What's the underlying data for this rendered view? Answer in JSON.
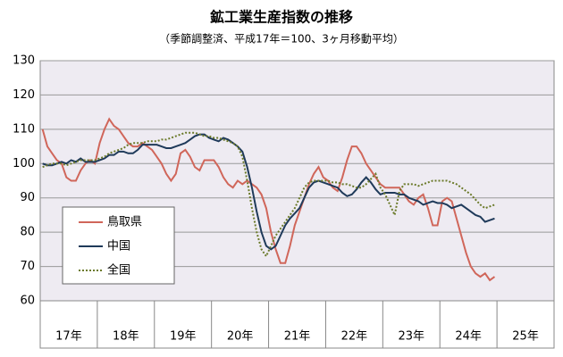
{
  "chart_data": {
    "type": "line",
    "title": "鉱工業生産指数の推移",
    "subtitle": "（季節調整済、平成17年＝100、3ヶ月移動平均）",
    "categories": [
      null,
      null,
      null,
      null,
      null,
      null,
      "17年",
      null,
      null,
      null,
      null,
      null,
      null,
      null,
      null,
      null,
      null,
      null,
      "18年",
      null,
      null,
      null,
      null,
      null,
      null,
      null,
      null,
      null,
      null,
      null,
      "19年",
      null,
      null,
      null,
      null,
      null,
      null,
      null,
      null,
      null,
      null,
      null,
      "20年",
      null,
      null,
      null,
      null,
      null,
      null,
      null,
      null,
      null,
      null,
      null,
      "21年",
      null,
      null,
      null,
      null,
      null,
      null,
      null,
      null,
      null,
      null,
      null,
      "22年",
      null,
      null,
      null,
      null,
      null,
      null,
      null,
      null,
      null,
      null,
      null,
      "23年",
      null,
      null,
      null,
      null,
      null,
      null,
      null,
      null,
      null,
      null,
      null,
      "24年",
      null,
      null,
      null,
      null,
      null,
      null,
      null,
      null,
      null,
      null,
      null,
      "25年",
      null,
      null,
      null,
      null,
      null
    ],
    "series": [
      {
        "name": "鳥取県",
        "color": "#d0665a",
        "dash": false,
        "values": [
          110,
          105,
          103,
          101,
          100,
          96,
          95,
          95,
          98,
          100,
          101,
          100,
          106,
          110,
          113,
          111,
          110,
          108,
          106,
          105,
          105,
          106,
          105,
          104,
          102,
          100,
          97,
          95,
          97,
          103,
          104,
          102,
          99,
          98,
          101,
          101,
          101,
          99,
          96,
          94,
          93,
          95,
          94,
          95,
          94,
          93,
          91,
          87,
          80,
          75,
          71,
          71,
          76,
          82,
          86,
          90,
          94,
          97,
          99,
          96,
          95,
          93,
          92,
          96,
          101,
          105,
          105,
          103,
          100,
          98,
          96,
          94,
          93,
          93,
          93,
          93,
          91,
          89,
          88,
          90,
          91,
          87,
          82,
          82,
          89,
          90,
          89,
          84,
          79,
          74,
          70,
          68,
          67,
          68,
          66,
          67,
          null,
          null,
          null,
          null,
          null,
          null,
          null,
          null,
          null,
          null,
          null,
          null
        ]
      },
      {
        "name": "中国",
        "color": "#1f3a5a",
        "dash": false,
        "values": [
          100,
          99.5,
          99.5,
          100,
          100.5,
          100,
          101,
          100.5,
          101.5,
          100.5,
          100.5,
          100.5,
          101,
          101.5,
          102.5,
          102.5,
          103.5,
          103.5,
          103,
          103,
          104,
          105.5,
          105.5,
          105.5,
          105.5,
          105,
          104.5,
          104.5,
          105,
          105.5,
          106,
          107,
          108,
          108.5,
          108.5,
          107.5,
          107,
          106.5,
          107.5,
          107,
          106,
          105,
          103.5,
          99,
          93,
          86,
          80,
          76,
          75,
          76,
          79,
          82,
          84,
          85.5,
          87,
          90,
          93,
          94.5,
          95,
          94.5,
          94,
          93.5,
          93,
          91.5,
          90.5,
          91,
          92.5,
          94.5,
          96,
          94.5,
          92.5,
          91,
          91.5,
          91.5,
          91.5,
          91,
          91,
          90,
          89.5,
          89,
          88,
          88.5,
          89,
          88.5,
          88.5,
          88,
          87,
          87.5,
          88,
          87,
          86,
          85,
          84.5,
          83,
          83.5,
          84,
          null,
          null,
          null,
          null,
          null,
          null,
          null,
          null,
          null,
          null,
          null,
          null
        ]
      },
      {
        "name": "全国",
        "color": "#6b7a2a",
        "dash": true,
        "values": [
          99,
          99.5,
          100,
          100,
          100,
          99.5,
          100,
          100.5,
          101,
          101,
          101,
          101,
          101.5,
          102,
          103,
          103.5,
          104,
          104.5,
          105.5,
          106,
          106,
          106,
          106.5,
          106.5,
          106.5,
          107,
          107,
          107.5,
          108,
          108.5,
          109,
          109,
          109,
          108.5,
          108,
          108,
          107.5,
          107.5,
          107,
          106.5,
          106,
          105,
          102,
          95,
          87,
          80,
          75,
          73,
          76,
          79,
          81,
          83,
          85,
          87,
          90,
          93,
          94.5,
          95,
          95,
          95,
          95,
          94.5,
          94.5,
          94,
          94,
          93.5,
          93,
          93,
          94,
          95.5,
          97,
          93,
          91,
          88,
          85,
          92,
          94,
          94,
          94,
          93.5,
          94,
          94.5,
          95,
          95,
          95,
          95,
          94.5,
          94,
          93,
          92,
          91,
          89.5,
          88,
          87,
          87.5,
          88,
          null,
          null,
          null,
          null,
          null,
          null,
          null,
          null,
          null,
          null,
          null,
          null
        ]
      }
    ],
    "ylim": [
      60,
      130
    ],
    "yticks": [
      60,
      70,
      80,
      90,
      100,
      110,
      120,
      130
    ],
    "grid": true
  }
}
